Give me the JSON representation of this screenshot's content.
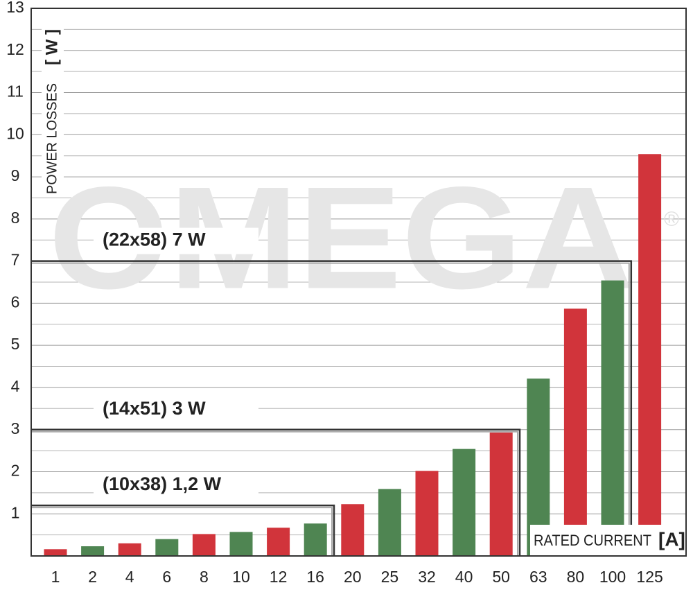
{
  "chart_data": {
    "type": "bar",
    "y_label": "POWER LOSSES",
    "y_unit": "[ W ]",
    "x_label": "RATED CURRENT",
    "x_unit": "[A]",
    "watermark": "OMEGA",
    "watermark_mark": "®",
    "categories": [
      "1",
      "2",
      "4",
      "6",
      "8",
      "10",
      "12",
      "16",
      "20",
      "25",
      "32",
      "40",
      "50",
      "63",
      "80",
      "100",
      "125"
    ],
    "values": [
      0.16,
      0.23,
      0.3,
      0.4,
      0.52,
      0.57,
      0.67,
      0.77,
      1.23,
      1.59,
      2.02,
      2.54,
      2.93,
      4.21,
      5.87,
      6.54,
      9.54
    ],
    "colors": [
      "#d1343b",
      "#4f8552",
      "#d1343b",
      "#4f8552",
      "#d1343b",
      "#4f8552",
      "#d1343b",
      "#4f8552",
      "#d1343b",
      "#4f8552",
      "#d1343b",
      "#4f8552",
      "#d1343b",
      "#4f8552",
      "#d1343b",
      "#4f8552",
      "#d1343b"
    ],
    "ylim": [
      0,
      13
    ],
    "yticks": [
      1,
      2,
      3,
      4,
      5,
      6,
      7,
      8,
      9,
      10,
      11,
      12,
      13
    ],
    "grid": true,
    "minor_grid": true,
    "annotations": [
      {
        "label": "(22x58) 7 W",
        "value": 7
      },
      {
        "label": "(14x51) 3 W",
        "value": 3
      },
      {
        "label": "(10x38) 1,2 W",
        "value": 1.2
      }
    ]
  }
}
